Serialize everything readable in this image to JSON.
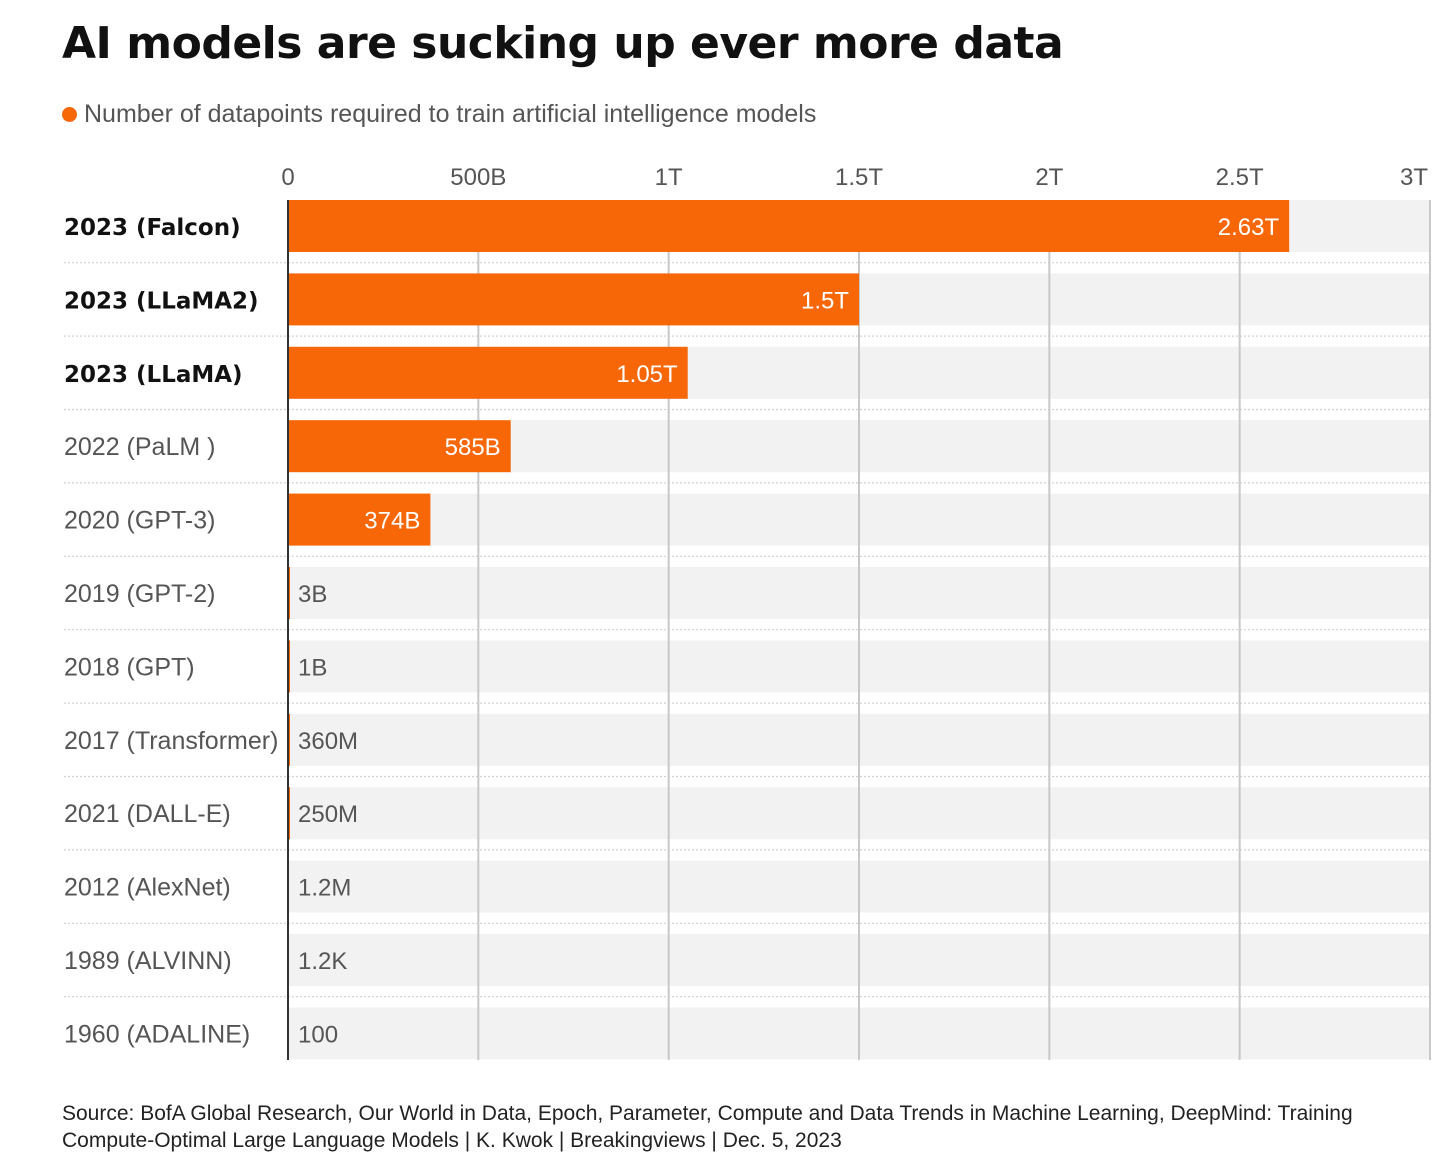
{
  "chart_data": {
    "type": "bar",
    "orientation": "horizontal",
    "title": "AI models are sucking up ever more data",
    "subtitle": "Number of datapoints required to train artificial intelligence models",
    "series": [
      {
        "name": "Number of datapoints required to train artificial intelligence models",
        "color": "#f76707"
      }
    ],
    "categories": [
      "2023 (Falcon)",
      "2023 (LLaMA2)",
      "2023 (LLaMA)",
      "2022 (PaLM )",
      "2020 (GPT-3)",
      "2019 (GPT-2)",
      "2018 (GPT)",
      "2017 (Transformer)",
      "2021 (DALL-E)",
      "2012 (AlexNet)",
      "1989 (ALVINN)",
      "1960 (ADALINE)"
    ],
    "bold_categories": [
      true,
      true,
      true,
      false,
      false,
      false,
      false,
      false,
      false,
      false,
      false,
      false
    ],
    "values": [
      2630000000000,
      1500000000000,
      1050000000000,
      585000000000,
      374000000000,
      3000000000,
      1000000000,
      360000000,
      250000000,
      1200000,
      1200,
      100
    ],
    "value_labels": [
      "2.63T",
      "1.5T",
      "1.05T",
      "585B",
      "374B",
      "3B",
      "1B",
      "360M",
      "250M",
      "1.2M",
      "1.2K",
      "100"
    ],
    "xlim": [
      0,
      3000000000000
    ],
    "x_ticks": [
      0,
      500000000000,
      1000000000000,
      1500000000000,
      2000000000000,
      2500000000000,
      3000000000000
    ],
    "x_tick_labels": [
      "0",
      "500B",
      "1T",
      "1.5T",
      "2T",
      "2.5T",
      "3T"
    ],
    "grid": true,
    "source": "Source: BofA Global Research, Our World in Data, Epoch, Parameter, Compute and Data Trends in Machine Learning, DeepMind: Training Compute-Optimal Large Language Models | K. Kwok | Breakingviews | Dec. 5, 2023"
  },
  "colors": {
    "bar": "#f76707",
    "track": "#f2f2f2",
    "grid": "#c8c8c8",
    "axis": "#333333",
    "label_bold": "#111111",
    "label_normal": "#555555",
    "value_inside": "#ffffff",
    "value_outside": "#555555"
  }
}
